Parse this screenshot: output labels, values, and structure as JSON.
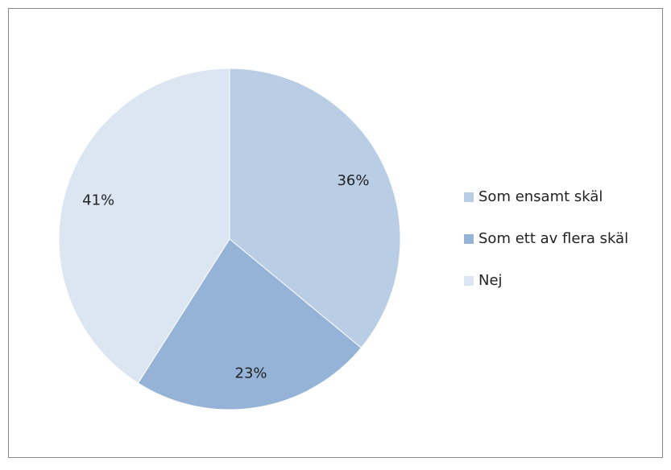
{
  "chart_data": {
    "type": "pie",
    "categories": [
      "Som ensamt skäl",
      "Som ett av flera skäl",
      "Nej"
    ],
    "values": [
      36,
      23,
      41
    ],
    "value_labels": [
      "36%",
      "23%",
      "41%"
    ],
    "colors": [
      "#b9cde5",
      "#95b3d7",
      "#dce6f2"
    ],
    "legend": "right"
  }
}
